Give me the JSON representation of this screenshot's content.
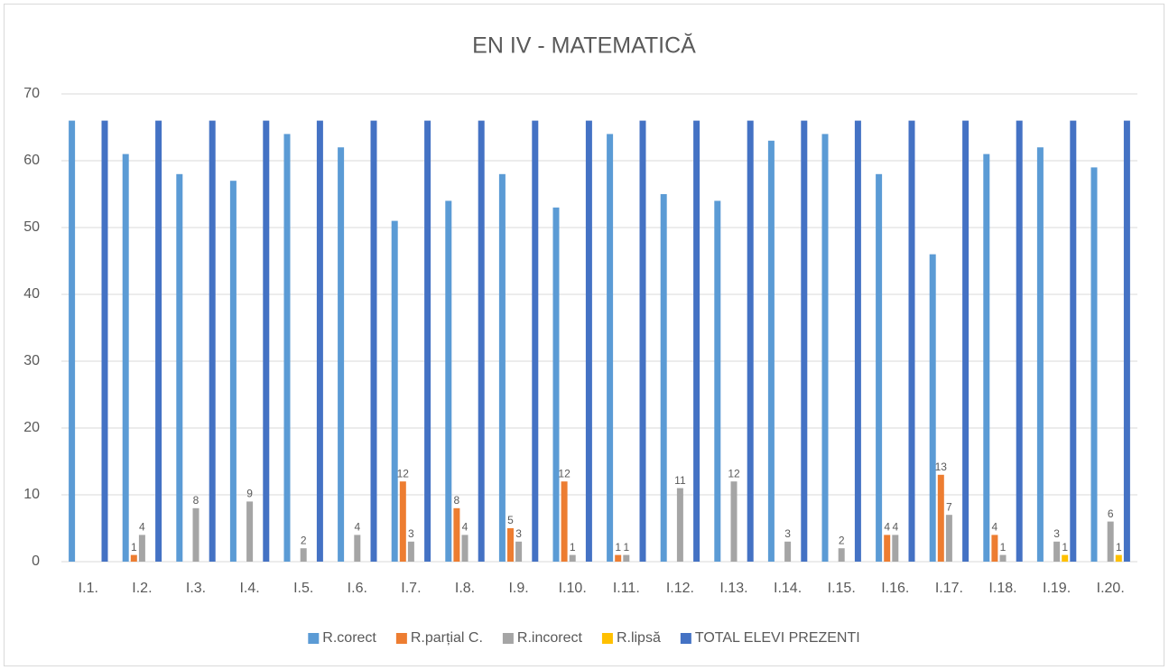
{
  "chart_data": {
    "type": "bar",
    "title": "EN IV - MATEMATICĂ",
    "categories": [
      "I.1.",
      "I.2.",
      "I.3.",
      "I.4.",
      "I.5.",
      "I.6.",
      "I.7.",
      "I.8.",
      "I.9.",
      "I.10.",
      "I.11.",
      "I.12.",
      "I.13.",
      "I.14.",
      "I.15.",
      "I.16.",
      "I.17.",
      "I.18.",
      "I.19.",
      "I.20."
    ],
    "series": [
      {
        "name": "R.corect",
        "color": "#5b9bd5",
        "values": [
          66,
          61,
          58,
          57,
          64,
          62,
          51,
          54,
          58,
          53,
          64,
          55,
          54,
          63,
          64,
          58,
          46,
          61,
          62,
          59
        ]
      },
      {
        "name": "R.parțial C.",
        "color": "#ed7d31",
        "values": [
          0,
          1,
          0,
          0,
          0,
          0,
          12,
          8,
          5,
          12,
          1,
          0,
          0,
          0,
          0,
          4,
          13,
          4,
          0,
          0
        ],
        "value_labels": [
          null,
          "1",
          null,
          null,
          null,
          null,
          "12",
          "8",
          "5",
          "12",
          "1",
          null,
          null,
          null,
          null,
          "4",
          "13",
          "4",
          null,
          null
        ]
      },
      {
        "name": "R.incorect",
        "color": "#a5a5a5",
        "values": [
          0,
          4,
          8,
          9,
          2,
          4,
          3,
          4,
          3,
          1,
          1,
          11,
          12,
          3,
          2,
          4,
          7,
          1,
          3,
          6
        ],
        "value_labels": [
          null,
          "4",
          "8",
          "9",
          "2",
          "4",
          "3",
          "4",
          "3",
          "1",
          "1",
          "11",
          "12",
          "3",
          "2",
          "4",
          "7",
          "1",
          "3",
          "6"
        ]
      },
      {
        "name": "R.lipsă",
        "color": "#ffc000",
        "values": [
          0,
          0,
          0,
          0,
          0,
          0,
          0,
          0,
          0,
          0,
          0,
          0,
          0,
          0,
          0,
          0,
          0,
          0,
          1,
          1
        ],
        "value_labels": [
          null,
          null,
          null,
          null,
          null,
          null,
          null,
          null,
          null,
          null,
          null,
          null,
          null,
          null,
          null,
          null,
          null,
          null,
          "1",
          "1"
        ]
      },
      {
        "name": "TOTAL ELEVI PREZENTI",
        "color": "#4472c4",
        "values": [
          66,
          66,
          66,
          66,
          66,
          66,
          66,
          66,
          66,
          66,
          66,
          66,
          66,
          66,
          66,
          66,
          66,
          66,
          66,
          66
        ]
      }
    ],
    "ylim": [
      0,
      70
    ],
    "yticks": [
      0,
      10,
      20,
      30,
      40,
      50,
      60,
      70
    ],
    "grid": true,
    "legend": "bottom"
  }
}
